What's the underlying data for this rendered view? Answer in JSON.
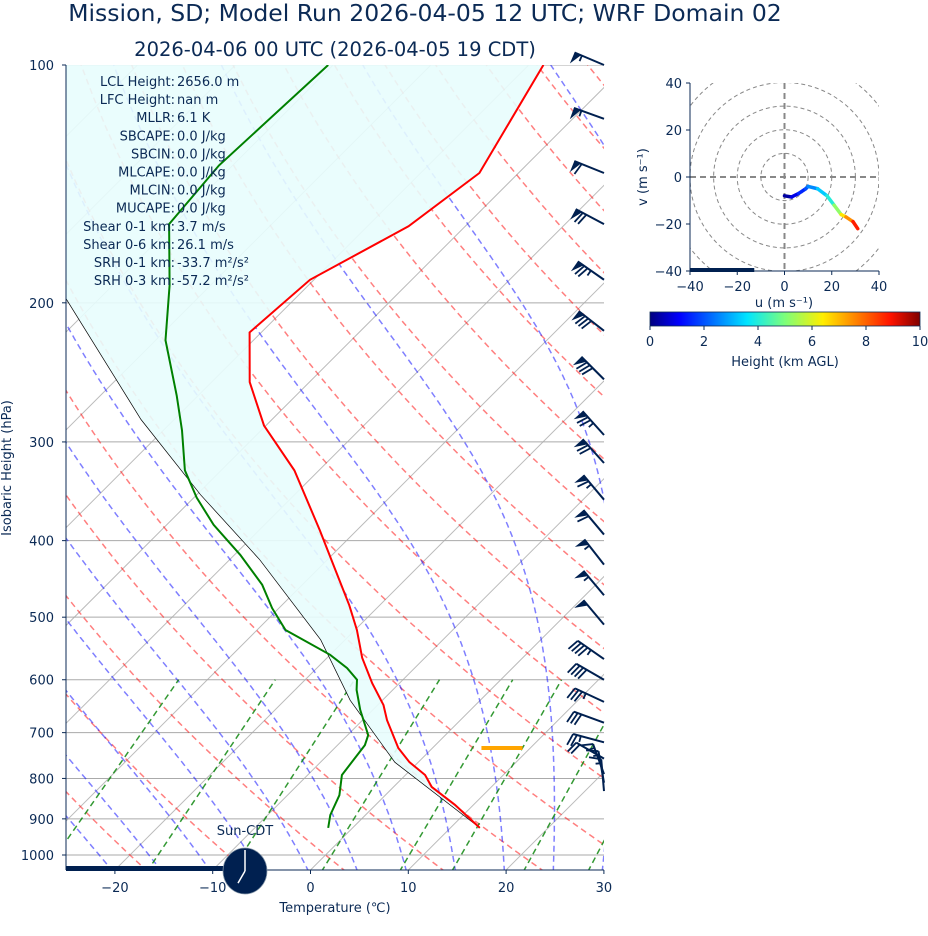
{
  "title": "Mission, SD; Model Run 2026-04-05 12 UTC; WRF Domain 02",
  "subtitle": "2026-04-06 00 UTC  (2026-04-05 19 CDT)",
  "stats": [
    {
      "label": "LCL Height:",
      "value": "2656.0 m"
    },
    {
      "label": "LFC Height:",
      "value": "nan m"
    },
    {
      "label": "MLLR:",
      "value": "6.1 K"
    },
    {
      "label": "SBCAPE:",
      "value": "0.0 J/kg"
    },
    {
      "label": "SBCIN:",
      "value": "0.0 J/kg"
    },
    {
      "label": "MLCAPE:",
      "value": "0.0 J/kg"
    },
    {
      "label": "MLCIN:",
      "value": "0.0 J/kg"
    },
    {
      "label": "MUCAPE:",
      "value": "0.0 J/kg"
    },
    {
      "label": "Shear 0-1 km:",
      "value": "3.7 m/s"
    },
    {
      "label": "Shear 0-6 km:",
      "value": "26.1 m/s"
    },
    {
      "label": "SRH 0-1 km:",
      "value": "-33.7 m²/s²"
    },
    {
      "label": "SRH 0-3 km:",
      "value": "-57.2 m²/s²"
    }
  ],
  "clock": {
    "label": "Sun-CDT",
    "hour": 19,
    "minute": 0
  },
  "colors": {
    "temperature": "#ff0000",
    "dewpoint": "#008000",
    "parcel": "#000000",
    "barb": "#002050",
    "lcl": "#ffa500",
    "cin_fill": "#e8fdfd",
    "text": "#0b2a55"
  },
  "chart_data": [
    {
      "type": "line",
      "title": "Skew-T Log-P",
      "xlabel": "Temperature (℃)",
      "ylabel": "Isobaric Height (hPa)",
      "xlim": [
        -25,
        30
      ],
      "ylim": [
        1050,
        100
      ],
      "xticks": [
        -20,
        -10,
        0,
        10,
        20,
        30
      ],
      "yticks": [
        100,
        200,
        300,
        400,
        500,
        600,
        700,
        800,
        900,
        1000
      ],
      "grid": true,
      "progress_fraction": 0.3,
      "lcl": {
        "pressure": 732,
        "t_range": [
          5,
          9.2
        ]
      },
      "series": [
        {
          "name": "temperature",
          "p": [
            924,
            864,
            820,
            792,
            763,
            732,
            675,
            646,
            606,
            563,
            519,
            483,
            436,
            388,
            326,
            286,
            252,
            218,
            187,
            160,
            137,
            100
          ],
          "t": [
            13.0,
            8.1,
            3.9,
            2.0,
            -0.9,
            -3.5,
            -7.5,
            -9.4,
            -12.8,
            -16.4,
            -19.8,
            -23.1,
            -28.1,
            -33.8,
            -42.5,
            -50.2,
            -56.1,
            -61.2,
            -60.4,
            -55.8,
            -54.0,
            -58.5
          ]
        },
        {
          "name": "dewpoint",
          "p": [
            924,
            890,
            840,
            792,
            726,
            705,
            655,
            618,
            600,
            580,
            558,
            519,
            487,
            455,
            417,
            382,
            353,
            326,
            290,
            262,
            223,
            190,
            159,
            134,
            100
          ],
          "t": [
            -2.5,
            -3.6,
            -4.7,
            -6.5,
            -7.2,
            -7.9,
            -11.3,
            -13.7,
            -14.7,
            -16.9,
            -20.0,
            -27.1,
            -30.7,
            -34.1,
            -39.4,
            -45.2,
            -49.7,
            -53.7,
            -58.1,
            -62.2,
            -69.0,
            -74.2,
            -80.5,
            -81.4,
            -80.5
          ]
        },
        {
          "name": "parcel",
          "p": [
            924,
            763,
            637,
            534,
            423,
            350,
            281,
            198,
            100
          ],
          "t": [
            13.0,
            -2.4,
            -13.3,
            -22.5,
            -36.9,
            -49.6,
            -63.4,
            -83.3,
            -120
          ]
        }
      ],
      "wind_barbs": [
        {
          "p": 100,
          "speed_kt": 55,
          "dir": 293
        },
        {
          "p": 117,
          "speed_kt": 55,
          "dir": 290
        },
        {
          "p": 137,
          "speed_kt": 60,
          "dir": 292
        },
        {
          "p": 159,
          "speed_kt": 70,
          "dir": 298
        },
        {
          "p": 187,
          "speed_kt": 75,
          "dir": 305
        },
        {
          "p": 217,
          "speed_kt": 80,
          "dir": 308
        },
        {
          "p": 250,
          "speed_kt": 80,
          "dir": 315
        },
        {
          "p": 294,
          "speed_kt": 75,
          "dir": 318
        },
        {
          "p": 319,
          "speed_kt": 70,
          "dir": 318
        },
        {
          "p": 355,
          "speed_kt": 65,
          "dir": 320
        },
        {
          "p": 393,
          "speed_kt": 60,
          "dir": 320
        },
        {
          "p": 429,
          "speed_kt": 55,
          "dir": 322
        },
        {
          "p": 469,
          "speed_kt": 55,
          "dir": 320
        },
        {
          "p": 511,
          "speed_kt": 50,
          "dir": 320
        },
        {
          "p": 565,
          "speed_kt": 45,
          "dir": 305
        },
        {
          "p": 600,
          "speed_kt": 40,
          "dir": 300
        },
        {
          "p": 640,
          "speed_kt": 35,
          "dir": 295
        },
        {
          "p": 680,
          "speed_kt": 30,
          "dir": 290
        },
        {
          "p": 720,
          "speed_kt": 25,
          "dir": 285
        },
        {
          "p": 755,
          "speed_kt": 20,
          "dir": 300
        },
        {
          "p": 790,
          "speed_kt": 15,
          "dir": 340
        },
        {
          "p": 810,
          "speed_kt": 15,
          "dir": 350
        },
        {
          "p": 830,
          "speed_kt": 15,
          "dir": 355
        }
      ]
    },
    {
      "type": "line",
      "title": "Hodograph",
      "xlabel": "u (m s⁻¹)",
      "ylabel": "v (m s⁻¹)",
      "xlim": [
        -40,
        40
      ],
      "ylim": [
        -40,
        40
      ],
      "xticks": [
        -40,
        -20,
        0,
        20,
        40
      ],
      "yticks": [
        -40,
        -20,
        0,
        20,
        40
      ],
      "rings": [
        10,
        20,
        30,
        40,
        50
      ],
      "progress_fraction": 0.34,
      "u": [
        0,
        3,
        6,
        9,
        10,
        14,
        18,
        21,
        24,
        26,
        29,
        31
      ],
      "v": [
        -8,
        -8.5,
        -7,
        -5,
        -4,
        -5,
        -8,
        -12,
        -16,
        -17,
        -19,
        -22
      ],
      "height_km": [
        0,
        0.6,
        1.2,
        1.8,
        2.2,
        3,
        3.6,
        4.4,
        6,
        7,
        8,
        9.6
      ],
      "colorbar": {
        "label": "Height (km AGL)",
        "range": [
          0,
          10
        ],
        "ticks": [
          0,
          2,
          4,
          6,
          8,
          10
        ]
      }
    }
  ]
}
